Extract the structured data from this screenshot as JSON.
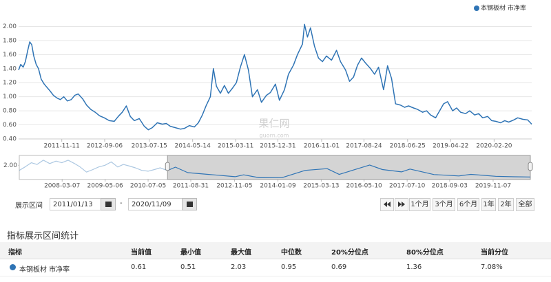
{
  "chart_data": [
    {
      "type": "line",
      "legend": "top-right",
      "grid": true,
      "annotations": [
        "果仁网",
        "guorn.com"
      ],
      "xlim": [
        "2011-01-13",
        "2020-11-09"
      ],
      "xticks": [
        "2011-11-11",
        "2012-09-06",
        "2013-07-15",
        "2014-05-14",
        "2015-03-11",
        "2015-12-31",
        "2016-11-01",
        "2017-08-24",
        "2018-06-25",
        "2019-04-22",
        "2020-02-20"
      ],
      "ylim": [
        0.4,
        2.2
      ],
      "yticks": [
        {
          "value": 0.4,
          "label": "0.40"
        },
        {
          "value": 0.6,
          "label": "0.60"
        },
        {
          "value": 0.8,
          "label": "0.80"
        },
        {
          "value": 1,
          "label": "1.00"
        },
        {
          "value": 1.2,
          "label": "1.20"
        },
        {
          "value": 1.4,
          "label": "1.40"
        },
        {
          "value": 1.6,
          "label": "1.60"
        },
        {
          "value": 1.8,
          "label": "1.80"
        },
        {
          "value": 2,
          "label": "2.00"
        }
      ],
      "x": [
        "2011-01-13",
        "2011-01-28",
        "2011-02-14",
        "2011-03-01",
        "2011-03-18",
        "2011-04-01",
        "2011-04-15",
        "2011-04-29",
        "2011-05-16",
        "2011-06-01",
        "2011-06-20",
        "2011-07-11",
        "2011-08-01",
        "2011-08-22",
        "2011-09-13",
        "2011-10-10",
        "2011-11-01",
        "2011-11-25",
        "2011-12-20",
        "2012-01-16",
        "2012-02-10",
        "2012-03-05",
        "2012-04-05",
        "2012-05-03",
        "2012-06-01",
        "2012-07-02",
        "2012-08-01",
        "2012-09-03",
        "2012-10-08",
        "2012-11-12",
        "2012-12-10",
        "2013-01-07",
        "2013-02-04",
        "2013-03-04",
        "2013-04-01",
        "2013-05-06",
        "2013-06-10",
        "2013-07-08",
        "2013-08-05",
        "2013-09-09",
        "2013-10-14",
        "2013-11-11",
        "2013-12-09",
        "2014-01-13",
        "2014-02-17",
        "2014-03-17",
        "2014-04-21",
        "2014-05-26",
        "2014-06-23",
        "2014-07-21",
        "2014-08-18",
        "2014-09-15",
        "2014-10-06",
        "2014-10-27",
        "2014-11-24",
        "2014-12-22",
        "2015-01-19",
        "2015-02-16",
        "2015-03-16",
        "2015-04-13",
        "2015-05-11",
        "2015-06-08",
        "2015-07-06",
        "2015-08-10",
        "2015-09-07",
        "2015-10-12",
        "2015-11-09",
        "2015-12-14",
        "2016-01-11",
        "2016-02-15",
        "2016-03-14",
        "2016-04-18",
        "2016-05-16",
        "2016-06-20",
        "2016-07-04",
        "2016-07-25",
        "2016-08-15",
        "2016-09-12",
        "2016-10-10",
        "2016-11-07",
        "2016-12-05",
        "2017-01-09",
        "2017-02-13",
        "2017-03-13",
        "2017-04-17",
        "2017-05-15",
        "2017-06-12",
        "2017-07-10",
        "2017-08-07",
        "2017-09-04",
        "2017-10-09",
        "2017-11-06",
        "2017-12-04",
        "2018-01-08",
        "2018-02-05",
        "2018-03-05",
        "2018-04-02",
        "2018-05-07",
        "2018-06-04",
        "2018-07-02",
        "2018-08-06",
        "2018-09-03",
        "2018-10-08",
        "2018-11-05",
        "2018-12-03",
        "2019-01-07",
        "2019-02-04",
        "2019-03-04",
        "2019-04-01",
        "2019-05-06",
        "2019-06-03",
        "2019-07-01",
        "2019-08-05",
        "2019-09-02",
        "2019-10-07",
        "2019-11-04",
        "2019-12-02",
        "2020-01-06",
        "2020-02-03",
        "2020-03-02",
        "2020-04-06",
        "2020-05-04",
        "2020-06-01",
        "2020-07-06",
        "2020-08-03",
        "2020-09-07",
        "2020-10-12",
        "2020-11-09"
      ],
      "series": [
        {
          "name": "本钢板材 市净率",
          "color": "#2f74b5",
          "values": [
            1.38,
            1.46,
            1.42,
            1.5,
            1.66,
            1.78,
            1.74,
            1.58,
            1.46,
            1.4,
            1.25,
            1.18,
            1.13,
            1.08,
            1.02,
            0.98,
            0.96,
            1.0,
            0.94,
            0.96,
            1.02,
            1.04,
            0.97,
            0.88,
            0.82,
            0.78,
            0.73,
            0.7,
            0.66,
            0.65,
            0.72,
            0.78,
            0.87,
            0.72,
            0.66,
            0.69,
            0.58,
            0.53,
            0.56,
            0.63,
            0.61,
            0.62,
            0.58,
            0.56,
            0.54,
            0.55,
            0.59,
            0.57,
            0.63,
            0.74,
            0.88,
            1.0,
            1.4,
            1.15,
            1.05,
            1.16,
            1.05,
            1.12,
            1.2,
            1.42,
            1.6,
            1.38,
            1.0,
            1.1,
            0.92,
            1.02,
            1.06,
            1.18,
            0.95,
            1.1,
            1.32,
            1.45,
            1.6,
            1.75,
            2.03,
            1.85,
            1.98,
            1.72,
            1.55,
            1.5,
            1.58,
            1.52,
            1.66,
            1.5,
            1.38,
            1.22,
            1.28,
            1.45,
            1.55,
            1.48,
            1.4,
            1.32,
            1.42,
            1.1,
            1.44,
            1.26,
            0.9,
            0.88,
            0.85,
            0.87,
            0.84,
            0.82,
            0.78,
            0.8,
            0.74,
            0.7,
            0.8,
            0.9,
            0.93,
            0.8,
            0.84,
            0.78,
            0.76,
            0.8,
            0.74,
            0.76,
            0.7,
            0.72,
            0.66,
            0.65,
            0.63,
            0.66,
            0.64,
            0.67,
            0.7,
            0.68,
            0.67,
            0.61
          ]
        }
      ]
    },
    {
      "type": "line",
      "xlim": [
        "2007-01-08",
        "2020-11-09"
      ],
      "xticks": [
        "2008-03-07",
        "2009-05-06",
        "2010-07-05",
        "2011-08-31",
        "2012-11-05",
        "2014-01-09",
        "2015-03-13",
        "2016-05-10",
        "2017-07-10",
        "2018-09-03",
        "2019-11-07"
      ],
      "ylim": [
        0.4,
        3.0
      ],
      "yticks": [
        {
          "value": 2,
          "label": "2.00"
        }
      ],
      "x": [
        "2007-01-08",
        "2007-03-05",
        "2007-05-07",
        "2007-07-02",
        "2007-09-03",
        "2007-11-05",
        "2008-01-07",
        "2008-03-03",
        "2008-05-05",
        "2008-07-07",
        "2008-09-01",
        "2008-11-03",
        "2009-01-05",
        "2009-03-02",
        "2009-05-04",
        "2009-07-06",
        "2009-09-07",
        "2009-11-02",
        "2010-01-04",
        "2010-03-01",
        "2010-05-03",
        "2010-07-05",
        "2010-09-06",
        "2010-11-01",
        "2011-01-13",
        "2011-04-01",
        "2011-08-01",
        "2012-01-16",
        "2012-06-01",
        "2012-11-12",
        "2013-02-04",
        "2013-07-08",
        "2014-02-17",
        "2014-10-06",
        "2015-05-11",
        "2015-09-07",
        "2016-07-04",
        "2016-11-07",
        "2017-05-15",
        "2017-08-07",
        "2018-04-02",
        "2018-12-03",
        "2019-04-01",
        "2019-12-02",
        "2020-06-01",
        "2020-11-09"
      ],
      "series": [
        {
          "color": "#2f74b5",
          "values": [
            1.4,
            1.8,
            2.3,
            2.1,
            2.6,
            2.2,
            2.5,
            2.3,
            2.6,
            2.2,
            1.8,
            1.2,
            1.5,
            1.8,
            2.0,
            2.4,
            1.8,
            2.1,
            1.9,
            1.7,
            1.4,
            1.3,
            1.5,
            1.7,
            1.38,
            1.78,
            1.13,
            0.96,
            0.82,
            0.65,
            0.87,
            0.53,
            0.54,
            1.4,
            1.6,
            0.92,
            2.03,
            1.5,
            1.22,
            1.55,
            0.9,
            0.74,
            0.93,
            0.7,
            0.64,
            0.61
          ]
        }
      ]
    }
  ],
  "range_selector": {
    "label": "展示区间",
    "start": "2011/01/13",
    "separator": "-",
    "end": "2020/11/09",
    "buttons": [
      "1个月",
      "3个月",
      "6个月",
      "1年",
      "2年",
      "全部"
    ]
  },
  "stats": {
    "title": "指标展示区间统计",
    "table": {
      "header": [
        "指标",
        "当前值",
        "最小值",
        "最大值",
        "中位数",
        "20%分位点",
        "80%分位点",
        "当前分位"
      ],
      "rows": [
        [
          "本钢板材 市净率",
          "0.61",
          "0.51",
          "2.03",
          "0.95",
          "0.69",
          "1.36",
          "7.08%"
        ]
      ]
    }
  }
}
